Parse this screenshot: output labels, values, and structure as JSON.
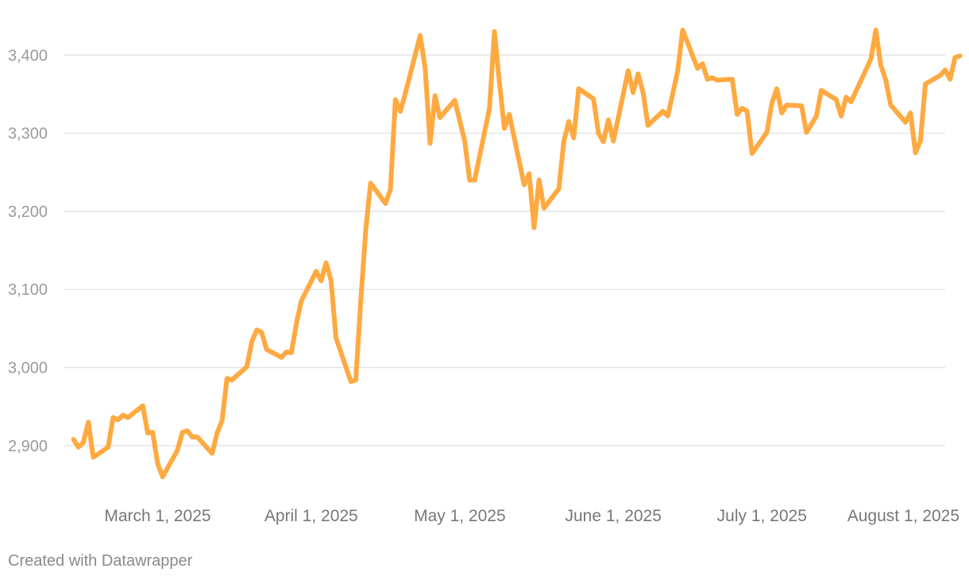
{
  "chart_data": {
    "type": "line",
    "title": "",
    "xlabel": "",
    "ylabel": "",
    "ylim": [
      2850,
      3440
    ],
    "xlim": [
      "2025-02-10",
      "2025-08-07"
    ],
    "grid": true,
    "line_color": "#ffa941",
    "y_ticks": [
      {
        "value": 3400,
        "label": "3,400"
      },
      {
        "value": 3300,
        "label": "3,300"
      },
      {
        "value": 3200,
        "label": "3,200"
      },
      {
        "value": 3100,
        "label": "3,100"
      },
      {
        "value": 3000,
        "label": "3,000"
      },
      {
        "value": 2900,
        "label": "2,900"
      }
    ],
    "x_ticks": [
      {
        "date": "2025-03-01",
        "label": "March 1, 2025"
      },
      {
        "date": "2025-04-01",
        "label": "April 1, 2025"
      },
      {
        "date": "2025-05-01",
        "label": "May 1, 2025"
      },
      {
        "date": "2025-06-01",
        "label": "June 1, 2025"
      },
      {
        "date": "2025-07-01",
        "label": "July 1, 2025"
      },
      {
        "date": "2025-08-01",
        "label": "August 1, 2025"
      }
    ],
    "series": [
      {
        "points": [
          [
            "2025-02-12",
            2908
          ],
          [
            "2025-02-13",
            2898
          ],
          [
            "2025-02-14",
            2904
          ],
          [
            "2025-02-15",
            2930
          ],
          [
            "2025-02-16",
            2885
          ],
          [
            "2025-02-19",
            2898
          ],
          [
            "2025-02-20",
            2936
          ],
          [
            "2025-02-21",
            2933
          ],
          [
            "2025-02-22",
            2939
          ],
          [
            "2025-02-23",
            2936
          ],
          [
            "2025-02-26",
            2951
          ],
          [
            "2025-02-27",
            2916
          ],
          [
            "2025-02-28",
            2917
          ],
          [
            "2025-03-01",
            2877
          ],
          [
            "2025-03-02",
            2860
          ],
          [
            "2025-03-05",
            2894
          ],
          [
            "2025-03-06",
            2917
          ],
          [
            "2025-03-07",
            2919
          ],
          [
            "2025-03-08",
            2911
          ],
          [
            "2025-03-09",
            2911
          ],
          [
            "2025-03-12",
            2890
          ],
          [
            "2025-03-13",
            2916
          ],
          [
            "2025-03-14",
            2932
          ],
          [
            "2025-03-15",
            2986
          ],
          [
            "2025-03-16",
            2984
          ],
          [
            "2025-03-19",
            3001
          ],
          [
            "2025-03-20",
            3033
          ],
          [
            "2025-03-21",
            3048
          ],
          [
            "2025-03-22",
            3045
          ],
          [
            "2025-03-23",
            3023
          ],
          [
            "2025-03-26",
            3013
          ],
          [
            "2025-03-27",
            3020
          ],
          [
            "2025-03-28",
            3019
          ],
          [
            "2025-03-29",
            3056
          ],
          [
            "2025-03-30",
            3085
          ],
          [
            "2025-04-02",
            3123
          ],
          [
            "2025-04-03",
            3111
          ],
          [
            "2025-04-04",
            3134
          ],
          [
            "2025-04-05",
            3112
          ],
          [
            "2025-04-06",
            3038
          ],
          [
            "2025-04-09",
            2982
          ],
          [
            "2025-04-10",
            2984
          ],
          [
            "2025-04-11",
            3085
          ],
          [
            "2025-04-12",
            3175
          ],
          [
            "2025-04-13",
            3236
          ],
          [
            "2025-04-16",
            3210
          ],
          [
            "2025-04-17",
            3228
          ],
          [
            "2025-04-18",
            3343
          ],
          [
            "2025-04-19",
            3328
          ],
          [
            "2025-04-20",
            3351
          ],
          [
            "2025-04-23",
            3425
          ],
          [
            "2025-04-24",
            3384
          ],
          [
            "2025-04-25",
            3287
          ],
          [
            "2025-04-26",
            3348
          ],
          [
            "2025-04-27",
            3320
          ],
          [
            "2025-04-30",
            3342
          ],
          [
            "2025-05-02",
            3290
          ],
          [
            "2025-05-03",
            3240
          ],
          [
            "2025-05-04",
            3240
          ],
          [
            "2025-05-07",
            3332
          ],
          [
            "2025-05-08",
            3430
          ],
          [
            "2025-05-09",
            3365
          ],
          [
            "2025-05-10",
            3306
          ],
          [
            "2025-05-11",
            3324
          ],
          [
            "2025-05-14",
            3234
          ],
          [
            "2025-05-15",
            3248
          ],
          [
            "2025-05-16",
            3179
          ],
          [
            "2025-05-17",
            3240
          ],
          [
            "2025-05-18",
            3204
          ],
          [
            "2025-05-21",
            3229
          ],
          [
            "2025-05-22",
            3289
          ],
          [
            "2025-05-23",
            3315
          ],
          [
            "2025-05-24",
            3294
          ],
          [
            "2025-05-25",
            3357
          ],
          [
            "2025-05-28",
            3344
          ],
          [
            "2025-05-29",
            3300
          ],
          [
            "2025-05-30",
            3289
          ],
          [
            "2025-05-31",
            3317
          ],
          [
            "2025-06-01",
            3290
          ],
          [
            "2025-06-04",
            3380
          ],
          [
            "2025-06-05",
            3352
          ],
          [
            "2025-06-06",
            3376
          ],
          [
            "2025-06-07",
            3352
          ],
          [
            "2025-06-08",
            3310
          ],
          [
            "2025-06-11",
            3328
          ],
          [
            "2025-06-12",
            3322
          ],
          [
            "2025-06-14",
            3380
          ],
          [
            "2025-06-15",
            3432
          ],
          [
            "2025-06-18",
            3383
          ],
          [
            "2025-06-19",
            3389
          ],
          [
            "2025-06-20",
            3369
          ],
          [
            "2025-06-21",
            3371
          ],
          [
            "2025-06-22",
            3368
          ],
          [
            "2025-06-25",
            3369
          ],
          [
            "2025-06-26",
            3324
          ],
          [
            "2025-06-27",
            3332
          ],
          [
            "2025-06-28",
            3328
          ],
          [
            "2025-06-29",
            3274
          ],
          [
            "2025-07-02",
            3301
          ],
          [
            "2025-07-03",
            3338
          ],
          [
            "2025-07-04",
            3357
          ],
          [
            "2025-07-05",
            3326
          ],
          [
            "2025-07-06",
            3336
          ],
          [
            "2025-07-09",
            3335
          ],
          [
            "2025-07-10",
            3301
          ],
          [
            "2025-07-12",
            3322
          ],
          [
            "2025-07-13",
            3355
          ],
          [
            "2025-07-16",
            3343
          ],
          [
            "2025-07-17",
            3322
          ],
          [
            "2025-07-18",
            3346
          ],
          [
            "2025-07-19",
            3340
          ],
          [
            "2025-07-23",
            3395
          ],
          [
            "2025-07-24",
            3432
          ],
          [
            "2025-07-25",
            3387
          ],
          [
            "2025-07-26",
            3368
          ],
          [
            "2025-07-27",
            3336
          ],
          [
            "2025-07-30",
            3314
          ],
          [
            "2025-07-31",
            3326
          ],
          [
            "2025-08-01",
            3275
          ],
          [
            "2025-08-02",
            3290
          ],
          [
            "2025-08-03",
            3363
          ],
          [
            "2025-08-06",
            3374
          ],
          [
            "2025-08-07",
            3381
          ],
          [
            "2025-08-08",
            3369
          ],
          [
            "2025-08-09",
            3397
          ],
          [
            "2025-08-10",
            3399
          ]
        ]
      }
    ]
  },
  "footer": {
    "credit": "Created with Datawrapper"
  }
}
